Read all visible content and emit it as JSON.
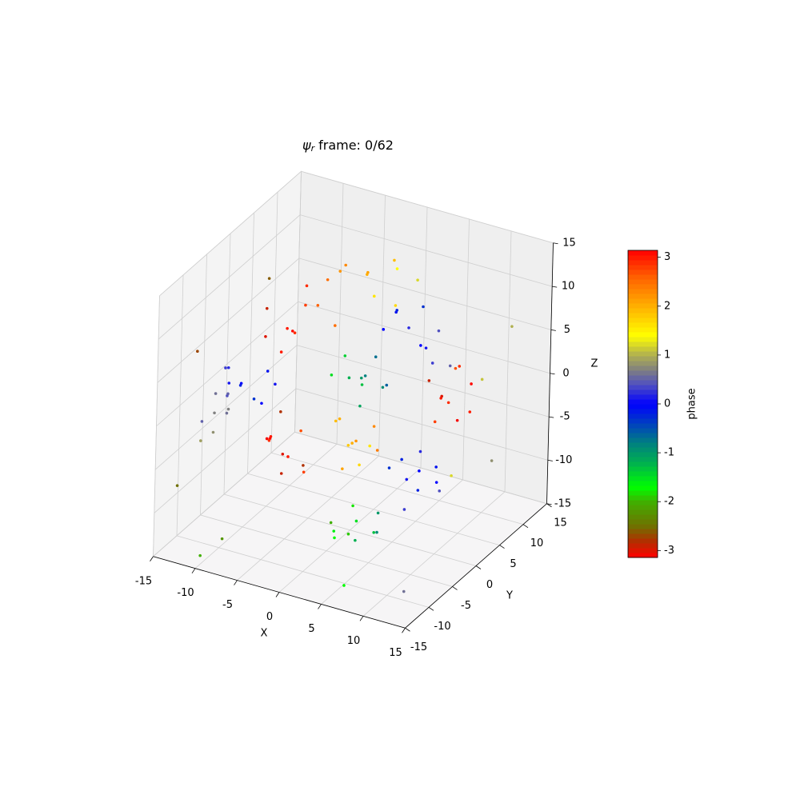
{
  "chart_data": {
    "type": "scatter3d",
    "title_symbol": "ψ",
    "title_subscript": "r",
    "title": "frame: 0/62",
    "xlabel": "X",
    "ylabel": "Y",
    "zlabel": "Z",
    "xlim": [
      -15,
      15
    ],
    "ylim": [
      -15,
      15
    ],
    "zlim": [
      -15,
      15
    ],
    "xticks": [
      -15,
      -10,
      -5,
      0,
      5,
      10,
      15
    ],
    "yticks": [
      -15,
      -10,
      -5,
      0,
      5,
      10,
      15
    ],
    "zticks": [
      -15,
      -10,
      -5,
      0,
      5,
      10,
      15
    ],
    "grid": true,
    "x": [
      -8,
      -7,
      -10,
      -6,
      -9,
      -5,
      -11,
      -7,
      -4,
      -8,
      -10,
      -9,
      -12,
      -8,
      -11,
      -7,
      -13,
      -9,
      -6,
      -10,
      2,
      0,
      3,
      1,
      4,
      -1,
      2,
      3,
      0,
      5,
      2,
      4,
      0,
      6,
      3,
      1,
      5,
      -1,
      7,
      2,
      -2,
      -4,
      0,
      -3,
      1,
      -5,
      2,
      -1,
      4,
      -3,
      -6,
      -8,
      -5,
      -7,
      -4,
      -9,
      -6,
      -3,
      -7,
      -5,
      0,
      1,
      -1,
      2,
      0,
      -2,
      1,
      3,
      -1,
      2,
      6,
      8,
      5,
      9,
      7,
      4,
      10,
      6,
      8,
      7,
      8,
      7,
      9,
      6,
      10,
      8,
      5,
      9,
      11,
      7,
      4,
      3,
      5,
      2,
      6,
      3,
      1,
      5,
      7,
      2,
      -12,
      -13,
      -11,
      -14,
      -12,
      -10,
      -13,
      -11,
      -13,
      -14,
      12,
      13,
      -12,
      10,
      -8,
      14,
      -14,
      12,
      -10,
      6
    ],
    "y": [
      0,
      2,
      -1,
      -2,
      3,
      1,
      1,
      -3,
      3,
      4,
      -6,
      -8,
      -5,
      -4,
      -7,
      -7,
      -4,
      -5,
      -6,
      -9,
      -2,
      -1,
      -3,
      0,
      -1,
      -3,
      1,
      -4,
      -2,
      -2,
      8,
      7,
      9,
      6,
      10,
      7,
      9,
      8,
      8,
      11,
      6,
      5,
      4,
      8,
      7,
      3,
      5,
      10,
      6,
      2,
      -4,
      -3,
      -6,
      -5,
      -3,
      -2,
      -7,
      -5,
      -1,
      -2,
      0,
      -1,
      1,
      1,
      -2,
      0,
      2,
      0,
      -1,
      -2,
      8,
      6,
      10,
      9,
      5,
      9,
      7,
      11,
      8,
      10,
      0,
      2,
      -2,
      1,
      0,
      -3,
      -1,
      2,
      -1,
      -2,
      -6,
      -5,
      -8,
      -7,
      -5,
      -9,
      -6,
      -4,
      -7,
      -4,
      -8,
      -6,
      -10,
      -7,
      -5,
      -9,
      -9,
      -7,
      5,
      -12,
      12,
      4,
      -12,
      12,
      -13,
      -4,
      10,
      -10,
      -14,
      -12
    ],
    "z": [
      6,
      8,
      5,
      7,
      4,
      9,
      7,
      5,
      6,
      9,
      2,
      3,
      1,
      3,
      4,
      1,
      2,
      0,
      3,
      2,
      4,
      3,
      5,
      2,
      3,
      4,
      5,
      2,
      6,
      4,
      5,
      4,
      6,
      3,
      2,
      7,
      5,
      4,
      2,
      6,
      11,
      12,
      10,
      10,
      12,
      11,
      9,
      11,
      12,
      13,
      -6,
      -5,
      -7,
      -4,
      -8,
      -6,
      -3,
      -6,
      -8,
      -4,
      -5,
      -4,
      -6,
      -3,
      -7,
      -3,
      -6,
      -5,
      -2,
      -6,
      -2,
      -1,
      -3,
      0,
      -3,
      -1,
      -2,
      0,
      -4,
      1,
      -6,
      -5,
      -7,
      -8,
      -5,
      -9,
      -6,
      -8,
      -7,
      -4,
      -10,
      -9,
      -11,
      -12,
      -9,
      -10,
      -11,
      -12,
      -10,
      -13,
      -1,
      0,
      -2,
      -3,
      -2,
      0,
      -4,
      1,
      8,
      -8,
      6,
      4,
      8,
      -10,
      -12,
      -3,
      -10,
      -14,
      -14,
      -14
    ],
    "values": [
      3.0,
      2.8,
      -3.0,
      2.9,
      3.1,
      2.6,
      -2.9,
      3.0,
      2.5,
      2.9,
      0.0,
      -0.2,
      0.1,
      -0.1,
      0.2,
      0.0,
      0.3,
      -0.3,
      0.1,
      0.4,
      -1.0,
      -1.2,
      -0.8,
      -1.3,
      -0.9,
      -1.5,
      -0.7,
      -1.1,
      -1.4,
      -0.6,
      0.2,
      0.0,
      -0.2,
      0.3,
      0.1,
      -0.1,
      0.4,
      0.0,
      0.5,
      -0.3,
      2.0,
      2.3,
      1.6,
      2.1,
      1.4,
      2.5,
      1.7,
      1.9,
      1.2,
      2.2,
      -3.0,
      3.0,
      -2.9,
      3.1,
      2.8,
      -3.1,
      2.9,
      -2.8,
      3.0,
      2.7,
      2.0,
      2.2,
      1.8,
      2.3,
      2.1,
      1.9,
      1.6,
      2.4,
      2.0,
      1.7,
      3.0,
      2.9,
      -3.0,
      3.1,
      2.8,
      -2.9,
      3.0,
      2.7,
      -3.1,
      2.9,
      0.0,
      0.2,
      -0.2,
      0.1,
      -0.1,
      0.3,
      -0.3,
      0.0,
      0.4,
      -0.2,
      -1.5,
      -1.8,
      -1.2,
      -1.7,
      -1.0,
      -1.6,
      -2.0,
      -1.3,
      -0.9,
      -1.9,
      0.7,
      0.6,
      0.8,
      0.5,
      0.7,
      0.6,
      0.9,
      0.5,
      -2.6,
      -2.5,
      1.0,
      1.1,
      -2.7,
      0.8,
      -2.2,
      1.2,
      -2.8,
      0.6,
      -2.0,
      -1.7
    ],
    "colormap": [
      {
        "value": -3.14159,
        "color": "#ff0000"
      },
      {
        "value": -2.8,
        "color": "#b03000"
      },
      {
        "value": -2.5,
        "color": "#707000"
      },
      {
        "value": -2.0,
        "color": "#40b000"
      },
      {
        "value": -1.7,
        "color": "#00ff00"
      },
      {
        "value": -1.2,
        "color": "#00b050"
      },
      {
        "value": -0.8,
        "color": "#008080"
      },
      {
        "value": -0.4,
        "color": "#0040c0"
      },
      {
        "value": 0,
        "color": "#0000ff"
      },
      {
        "value": 0.4,
        "color": "#5050c0"
      },
      {
        "value": 0.7,
        "color": "#808080"
      },
      {
        "value": 1.0,
        "color": "#b0b050"
      },
      {
        "value": 1.4,
        "color": "#ffff00"
      },
      {
        "value": 2.0,
        "color": "#ffb000"
      },
      {
        "value": 2.6,
        "color": "#ff6000"
      },
      {
        "value": 3.14159,
        "color": "#ff0000"
      }
    ],
    "colorbar": {
      "label": "phase",
      "clim": [
        -3.14159,
        3.14159
      ],
      "ticks": [
        -3,
        -2,
        -1,
        0,
        1,
        2,
        3
      ]
    }
  }
}
